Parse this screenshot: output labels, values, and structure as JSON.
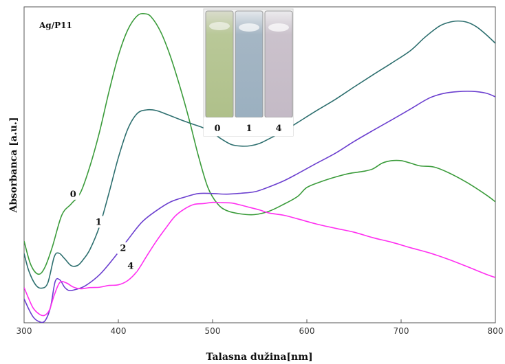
{
  "chart_data": {
    "type": "line",
    "title": "",
    "xlabel": "Talasna dužina[nm]",
    "ylabel": "Absorbanca [a.u.]",
    "annotation": "Ag/P11",
    "xlim": [
      300,
      800
    ],
    "ylim": [
      0,
      1
    ],
    "xticks": [
      300,
      400,
      500,
      600,
      700,
      800
    ],
    "yticks": [],
    "grid": false,
    "legend": "none",
    "series": [
      {
        "name": "0",
        "color": "#3a9b3a",
        "points": [
          [
            300,
            0.253
          ],
          [
            307,
            0.176
          ],
          [
            315,
            0.144
          ],
          [
            322,
            0.166
          ],
          [
            330,
            0.234
          ],
          [
            340,
            0.338
          ],
          [
            350,
            0.375
          ],
          [
            360,
            0.413
          ],
          [
            370,
            0.5
          ],
          [
            380,
            0.611
          ],
          [
            390,
            0.743
          ],
          [
            400,
            0.862
          ],
          [
            410,
            0.947
          ],
          [
            420,
            0.993
          ],
          [
            428,
            1.0
          ],
          [
            435,
            0.989
          ],
          [
            445,
            0.94
          ],
          [
            455,
            0.862
          ],
          [
            465,
            0.764
          ],
          [
            475,
            0.654
          ],
          [
            485,
            0.532
          ],
          [
            495,
            0.429
          ],
          [
            505,
            0.376
          ],
          [
            515,
            0.353
          ],
          [
            530,
            0.342
          ],
          [
            545,
            0.34
          ],
          [
            560,
            0.351
          ],
          [
            575,
            0.373
          ],
          [
            590,
            0.399
          ],
          [
            600,
            0.429
          ],
          [
            615,
            0.448
          ],
          [
            630,
            0.463
          ],
          [
            645,
            0.475
          ],
          [
            660,
            0.482
          ],
          [
            670,
            0.49
          ],
          [
            680,
            0.509
          ],
          [
            690,
            0.517
          ],
          [
            700,
            0.517
          ],
          [
            710,
            0.509
          ],
          [
            720,
            0.5
          ],
          [
            735,
            0.496
          ],
          [
            750,
            0.478
          ],
          [
            770,
            0.445
          ],
          [
            790,
            0.405
          ],
          [
            800,
            0.382
          ]
        ]
      },
      {
        "name": "1",
        "color": "#2c6e6e",
        "points": [
          [
            300,
            0.212
          ],
          [
            305,
            0.155
          ],
          [
            312,
            0.11
          ],
          [
            318,
            0.098
          ],
          [
            325,
            0.114
          ],
          [
            332,
            0.201
          ],
          [
            337,
            0.213
          ],
          [
            343,
            0.195
          ],
          [
            350,
            0.172
          ],
          [
            357,
            0.173
          ],
          [
            363,
            0.193
          ],
          [
            370,
            0.226
          ],
          [
            380,
            0.301
          ],
          [
            390,
            0.41
          ],
          [
            400,
            0.527
          ],
          [
            410,
            0.621
          ],
          [
            420,
            0.672
          ],
          [
            430,
            0.684
          ],
          [
            440,
            0.682
          ],
          [
            450,
            0.671
          ],
          [
            460,
            0.659
          ],
          [
            470,
            0.647
          ],
          [
            480,
            0.636
          ],
          [
            490,
            0.625
          ],
          [
            500,
            0.608
          ],
          [
            510,
            0.587
          ],
          [
            520,
            0.57
          ],
          [
            530,
            0.565
          ],
          [
            540,
            0.566
          ],
          [
            550,
            0.574
          ],
          [
            560,
            0.589
          ],
          [
            575,
            0.613
          ],
          [
            590,
            0.642
          ],
          [
            610,
            0.681
          ],
          [
            630,
            0.718
          ],
          [
            650,
            0.759
          ],
          [
            670,
            0.799
          ],
          [
            690,
            0.838
          ],
          [
            710,
            0.879
          ],
          [
            725,
            0.922
          ],
          [
            740,
            0.958
          ],
          [
            750,
            0.971
          ],
          [
            760,
            0.976
          ],
          [
            770,
            0.972
          ],
          [
            780,
            0.957
          ],
          [
            790,
            0.932
          ],
          [
            800,
            0.903
          ]
        ]
      },
      {
        "name": "2",
        "color": "#6b3fcf",
        "points": [
          [
            300,
            0.063
          ],
          [
            305,
            0.029
          ],
          [
            310,
            0.002
          ],
          [
            316,
            -0.012
          ],
          [
            322,
            -0.01
          ],
          [
            328,
            0.035
          ],
          [
            333,
            0.12
          ],
          [
            338,
            0.125
          ],
          [
            343,
            0.101
          ],
          [
            348,
            0.09
          ],
          [
            355,
            0.094
          ],
          [
            365,
            0.106
          ],
          [
            380,
            0.142
          ],
          [
            395,
            0.196
          ],
          [
            410,
            0.257
          ],
          [
            425,
            0.315
          ],
          [
            440,
            0.352
          ],
          [
            455,
            0.381
          ],
          [
            470,
            0.397
          ],
          [
            485,
            0.409
          ],
          [
            500,
            0.409
          ],
          [
            515,
            0.407
          ],
          [
            530,
            0.41
          ],
          [
            545,
            0.415
          ],
          [
            560,
            0.431
          ],
          [
            575,
            0.45
          ],
          [
            590,
            0.474
          ],
          [
            610,
            0.508
          ],
          [
            630,
            0.541
          ],
          [
            650,
            0.58
          ],
          [
            670,
            0.616
          ],
          [
            690,
            0.651
          ],
          [
            710,
            0.687
          ],
          [
            730,
            0.723
          ],
          [
            745,
            0.738
          ],
          [
            760,
            0.744
          ],
          [
            775,
            0.745
          ],
          [
            790,
            0.739
          ],
          [
            800,
            0.727
          ]
        ]
      },
      {
        "name": "4",
        "color": "#ff2ef0",
        "points": [
          [
            300,
            0.1
          ],
          [
            305,
            0.063
          ],
          [
            310,
            0.031
          ],
          [
            317,
            0.011
          ],
          [
            322,
            0.009
          ],
          [
            327,
            0.027
          ],
          [
            332,
            0.075
          ],
          [
            338,
            0.117
          ],
          [
            345,
            0.115
          ],
          [
            352,
            0.102
          ],
          [
            360,
            0.096
          ],
          [
            370,
            0.1
          ],
          [
            380,
            0.101
          ],
          [
            390,
            0.107
          ],
          [
            400,
            0.109
          ],
          [
            410,
            0.123
          ],
          [
            420,
            0.154
          ],
          [
            430,
            0.203
          ],
          [
            440,
            0.251
          ],
          [
            450,
            0.294
          ],
          [
            460,
            0.334
          ],
          [
            470,
            0.358
          ],
          [
            480,
            0.373
          ],
          [
            490,
            0.376
          ],
          [
            500,
            0.38
          ],
          [
            510,
            0.379
          ],
          [
            520,
            0.378
          ],
          [
            530,
            0.371
          ],
          [
            540,
            0.363
          ],
          [
            550,
            0.355
          ],
          [
            560,
            0.345
          ],
          [
            575,
            0.338
          ],
          [
            590,
            0.326
          ],
          [
            610,
            0.309
          ],
          [
            630,
            0.295
          ],
          [
            650,
            0.282
          ],
          [
            670,
            0.264
          ],
          [
            690,
            0.249
          ],
          [
            710,
            0.231
          ],
          [
            730,
            0.214
          ],
          [
            750,
            0.193
          ],
          [
            770,
            0.169
          ],
          [
            790,
            0.144
          ],
          [
            800,
            0.133
          ]
        ]
      }
    ],
    "series_labels": [
      {
        "text": "0",
        "x": 352,
        "y": 0.4
      },
      {
        "text": "1",
        "x": 379,
        "y": 0.308
      },
      {
        "text": "2",
        "x": 405,
        "y": 0.222
      },
      {
        "text": "4",
        "x": 413,
        "y": 0.164
      }
    ]
  },
  "inset": {
    "description": "Cuvette photo inset",
    "labels": [
      "0",
      "1",
      "4"
    ],
    "colors": [
      "#b9c898",
      "#a5b6c4",
      "#cbc2cc"
    ]
  }
}
